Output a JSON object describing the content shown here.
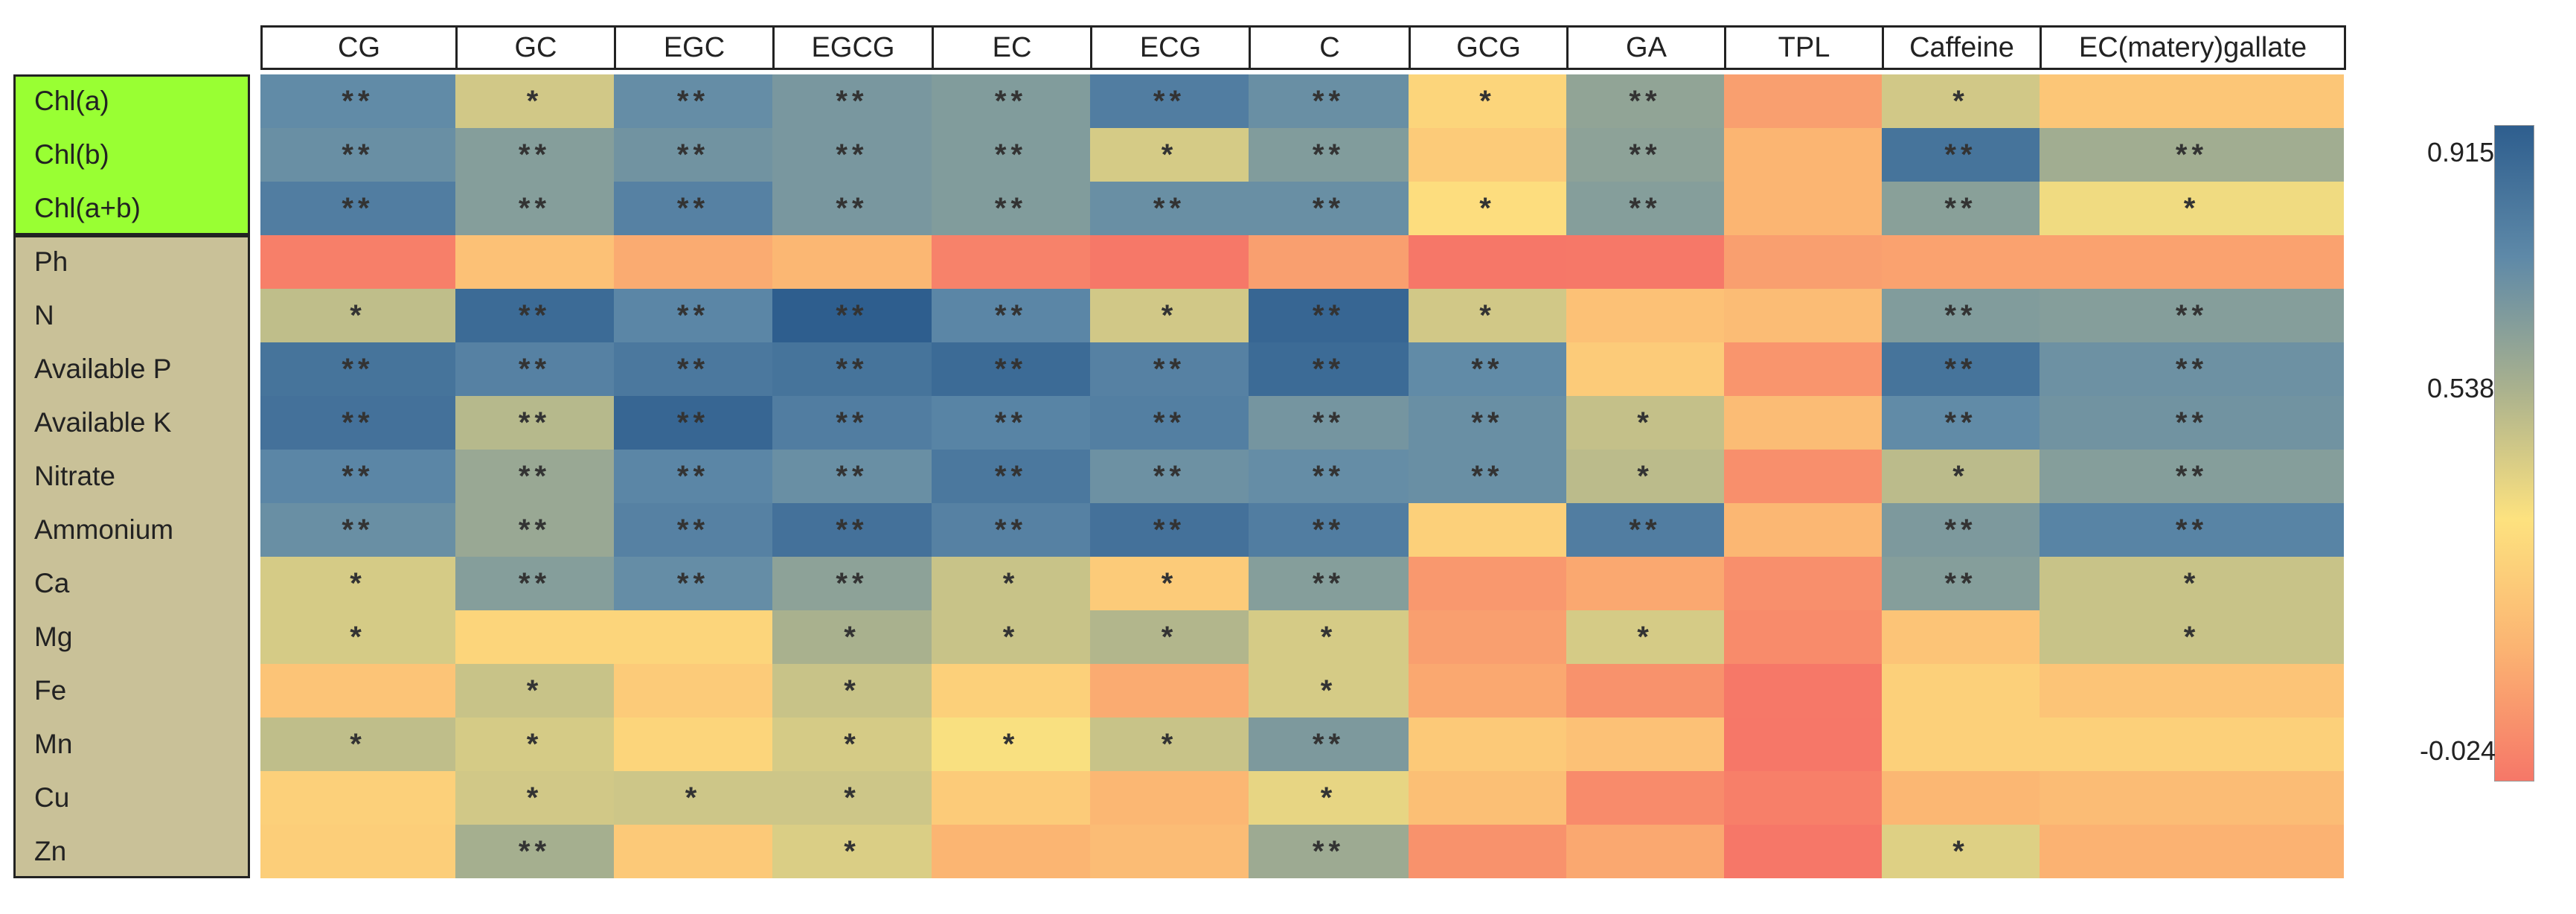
{
  "chart_data": {
    "type": "heatmap",
    "columns": [
      "CG",
      "GC",
      "EGC",
      "EGCG",
      "EC",
      "ECG",
      "C",
      "GCG",
      "GA",
      "TPL",
      "Caffeine",
      "EC(matery)gallate"
    ],
    "rows": [
      "Chl(a)",
      "Chl(b)",
      "Chl(a+b)",
      "Ph",
      "N",
      "Available P",
      "Available K",
      "Nitrate",
      "Ammonium",
      "Ca",
      "Mg",
      "Fe",
      "Mn",
      "Cu",
      "Zn"
    ],
    "row_groups": [
      {
        "rows": [
          "Chl(a)",
          "Chl(b)",
          "Chl(a+b)"
        ],
        "color": "#99ff33"
      },
      {
        "rows": [
          "Ph",
          "N",
          "Available P",
          "Available K",
          "Nitrate",
          "Ammonium",
          "Ca",
          "Mg",
          "Fe",
          "Mn",
          "Cu",
          "Zn"
        ],
        "color": "#c9c198"
      }
    ],
    "values": [
      [
        0.72,
        0.45,
        0.71,
        0.66,
        0.64,
        0.78,
        0.7,
        0.3,
        0.6,
        0.1,
        0.45,
        0.24
      ],
      [
        0.7,
        0.63,
        0.68,
        0.66,
        0.64,
        0.44,
        0.64,
        0.26,
        0.61,
        0.17,
        0.82,
        0.56
      ],
      [
        0.78,
        0.63,
        0.76,
        0.66,
        0.64,
        0.7,
        0.7,
        0.33,
        0.63,
        0.17,
        0.62,
        0.38
      ],
      [
        0.0,
        0.22,
        0.14,
        0.18,
        0.01,
        -0.02,
        0.1,
        -0.1,
        -0.02,
        0.1,
        0.11,
        0.11
      ],
      [
        0.49,
        0.86,
        0.74,
        0.97,
        0.74,
        0.45,
        0.88,
        0.45,
        0.22,
        0.2,
        0.64,
        0.63
      ],
      [
        0.82,
        0.76,
        0.8,
        0.82,
        0.86,
        0.76,
        0.86,
        0.72,
        0.26,
        0.07,
        0.82,
        0.69
      ],
      [
        0.83,
        0.51,
        0.88,
        0.78,
        0.75,
        0.77,
        0.67,
        0.7,
        0.48,
        0.2,
        0.72,
        0.68
      ],
      [
        0.74,
        0.58,
        0.74,
        0.7,
        0.8,
        0.69,
        0.71,
        0.7,
        0.5,
        0.05,
        0.5,
        0.63
      ],
      [
        0.7,
        0.58,
        0.76,
        0.83,
        0.76,
        0.83,
        0.78,
        0.28,
        0.78,
        0.18,
        0.65,
        0.75
      ],
      [
        0.44,
        0.63,
        0.71,
        0.61,
        0.47,
        0.26,
        0.63,
        0.08,
        0.13,
        0.05,
        0.63,
        0.47
      ],
      [
        0.44,
        0.3,
        0.3,
        0.54,
        0.47,
        0.52,
        0.44,
        0.1,
        0.44,
        0.04,
        0.23,
        0.47
      ],
      [
        0.23,
        0.47,
        0.26,
        0.47,
        0.28,
        0.14,
        0.44,
        0.13,
        0.06,
        -0.02,
        0.28,
        0.23
      ],
      [
        0.49,
        0.44,
        0.3,
        0.44,
        0.36,
        0.47,
        0.65,
        0.25,
        0.22,
        -0.08,
        0.28,
        0.28
      ],
      [
        0.28,
        0.45,
        0.46,
        0.46,
        0.26,
        0.18,
        0.4,
        0.21,
        0.04,
        0.0,
        0.18,
        0.2
      ],
      [
        0.27,
        0.55,
        0.25,
        0.43,
        0.17,
        0.2,
        0.57,
        0.06,
        0.13,
        -0.05,
        0.42,
        0.16
      ]
    ],
    "significance": [
      [
        "**",
        "*",
        "**",
        "**",
        "**",
        "**",
        "**",
        "*",
        "**",
        "",
        "*",
        ""
      ],
      [
        "**",
        "**",
        "**",
        "**",
        "**",
        "*",
        "**",
        "",
        "**",
        "",
        "**",
        "**"
      ],
      [
        "**",
        "**",
        "**",
        "**",
        "**",
        "**",
        "**",
        "*",
        "**",
        "",
        "**",
        "*"
      ],
      [
        "",
        "",
        "",
        "",
        "",
        "",
        "",
        "",
        "",
        "",
        "",
        ""
      ],
      [
        "*",
        "**",
        "**",
        "**",
        "**",
        "*",
        "**",
        "*",
        "",
        "",
        "**",
        "**"
      ],
      [
        "**",
        "**",
        "**",
        "**",
        "**",
        "**",
        "**",
        "**",
        "",
        "",
        "**",
        "**"
      ],
      [
        "**",
        "**",
        "**",
        "**",
        "**",
        "**",
        "**",
        "**",
        "*",
        "",
        "**",
        "**"
      ],
      [
        "**",
        "**",
        "**",
        "**",
        "**",
        "**",
        "**",
        "**",
        "*",
        "",
        "*",
        "**"
      ],
      [
        "**",
        "**",
        "**",
        "**",
        "**",
        "**",
        "**",
        "",
        "**",
        "",
        "**",
        "**"
      ],
      [
        "*",
        "**",
        "**",
        "**",
        "*",
        "*",
        "**",
        "",
        "",
        "",
        "**",
        "*"
      ],
      [
        "*",
        "",
        "",
        "*",
        "*",
        "*",
        "*",
        "",
        "*",
        "",
        "",
        "*"
      ],
      [
        "",
        "*",
        "",
        "*",
        "",
        "",
        "*",
        "",
        "",
        "",
        "",
        ""
      ],
      [
        "*",
        "*",
        "",
        "*",
        "*",
        "*",
        "**",
        "",
        "",
        "",
        "",
        ""
      ],
      [
        "",
        "*",
        "*",
        "*",
        "",
        "",
        "*",
        "",
        "",
        "",
        "",
        ""
      ],
      [
        "",
        "**",
        "",
        "*",
        "",
        "",
        "**",
        "",
        "",
        "",
        "*",
        ""
      ]
    ],
    "color_scale": {
      "min": -0.024,
      "max": 0.915,
      "colors": [
        "#f67768",
        "#fbb372",
        "#fde27f",
        "#a9b18e",
        "#5e89a8",
        "#2e5e8e"
      ],
      "ticks": [
        "0.915",
        "0.538",
        "-0.024"
      ],
      "tick_values": [
        0.915,
        0.538,
        -0.024
      ]
    }
  }
}
